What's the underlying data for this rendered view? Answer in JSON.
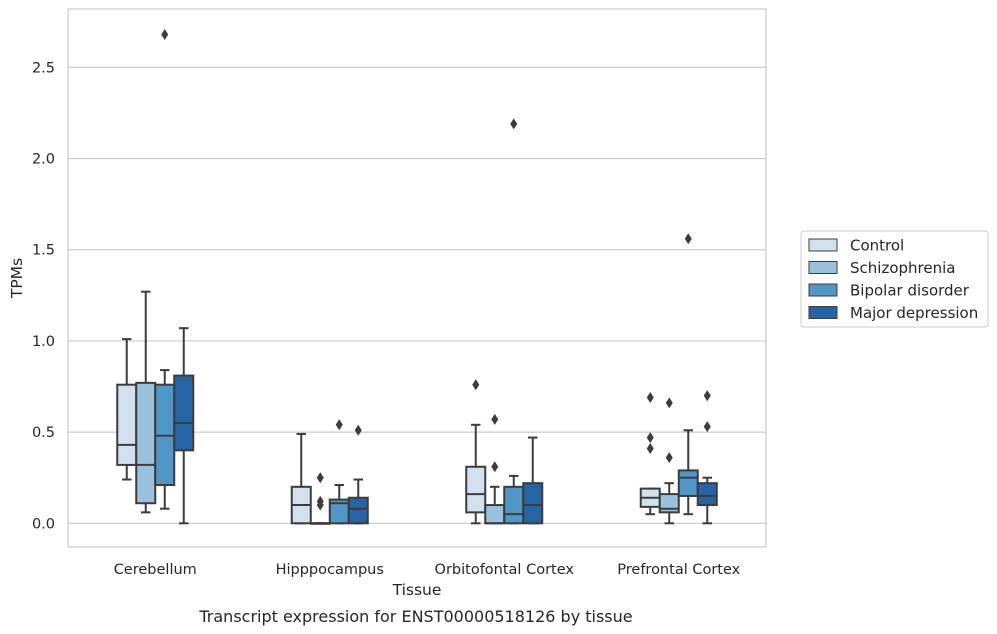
{
  "caption": "Transcript expression for ENST00000518126 by tissue",
  "chart_data": {
    "type": "boxplot",
    "xlabel": "Tissue",
    "ylabel": "TPMs",
    "categories": [
      "Cerebellum",
      "Hipppocampus",
      "Orbitofontal Cortex",
      "Prefrontal Cortex"
    ],
    "ylim": [
      -0.13,
      2.82
    ],
    "yticks": [
      0.0,
      0.5,
      1.0,
      1.5,
      2.0,
      2.5
    ],
    "ytick_labels": [
      "0.0",
      "0.5",
      "1.0",
      "1.5",
      "2.0",
      "2.5"
    ],
    "grid": "horizontal",
    "legend_placement": "right",
    "series": [
      {
        "name": "Control",
        "color": "#d1e1f0",
        "boxes": [
          {
            "whisker_low": 0.24,
            "q1": 0.32,
            "median": 0.43,
            "q3": 0.76,
            "whisker_high": 1.01,
            "outliers": []
          },
          {
            "whisker_low": 0.0,
            "q1": 0.0,
            "median": 0.1,
            "q3": 0.2,
            "whisker_high": 0.49,
            "outliers": []
          },
          {
            "whisker_low": 0.0,
            "q1": 0.06,
            "median": 0.16,
            "q3": 0.31,
            "whisker_high": 0.54,
            "outliers": [
              0.76
            ]
          },
          {
            "whisker_low": 0.05,
            "q1": 0.09,
            "median": 0.14,
            "q3": 0.19,
            "whisker_high": 0.19,
            "outliers": [
              0.41,
              0.47,
              0.69
            ]
          }
        ]
      },
      {
        "name": "Schizophrenia",
        "color": "#9bc2dc",
        "boxes": [
          {
            "whisker_low": 0.06,
            "q1": 0.11,
            "median": 0.32,
            "q3": 0.77,
            "whisker_high": 1.27,
            "outliers": []
          },
          {
            "whisker_low": 0.0,
            "q1": 0.0,
            "median": 0.0,
            "q3": 0.0,
            "whisker_high": 0.0,
            "outliers": [
              0.1,
              0.12,
              0.25
            ]
          },
          {
            "whisker_low": 0.0,
            "q1": 0.0,
            "median": 0.0,
            "q3": 0.1,
            "whisker_high": 0.2,
            "outliers": [
              0.31,
              0.57
            ]
          },
          {
            "whisker_low": 0.0,
            "q1": 0.06,
            "median": 0.08,
            "q3": 0.16,
            "whisker_high": 0.22,
            "outliers": [
              0.36,
              0.66
            ]
          }
        ]
      },
      {
        "name": "Bipolar disorder",
        "color": "#5096c6",
        "boxes": [
          {
            "whisker_low": 0.08,
            "q1": 0.21,
            "median": 0.48,
            "q3": 0.76,
            "whisker_high": 0.84,
            "outliers": [
              2.68
            ]
          },
          {
            "whisker_low": 0.0,
            "q1": 0.0,
            "median": 0.11,
            "q3": 0.13,
            "whisker_high": 0.21,
            "outliers": [
              0.54
            ]
          },
          {
            "whisker_low": 0.0,
            "q1": 0.0,
            "median": 0.05,
            "q3": 0.2,
            "whisker_high": 0.26,
            "outliers": [
              2.19
            ]
          },
          {
            "whisker_low": 0.05,
            "q1": 0.15,
            "median": 0.25,
            "q3": 0.29,
            "whisker_high": 0.51,
            "outliers": [
              1.56
            ]
          }
        ]
      },
      {
        "name": "Major depression",
        "color": "#2565a6",
        "boxes": [
          {
            "whisker_low": 0.0,
            "q1": 0.4,
            "median": 0.55,
            "q3": 0.81,
            "whisker_high": 1.07,
            "outliers": []
          },
          {
            "whisker_low": 0.0,
            "q1": 0.0,
            "median": 0.08,
            "q3": 0.14,
            "whisker_high": 0.24,
            "outliers": [
              0.51
            ]
          },
          {
            "whisker_low": 0.0,
            "q1": 0.0,
            "median": 0.1,
            "q3": 0.22,
            "whisker_high": 0.47,
            "outliers": []
          },
          {
            "whisker_low": 0.0,
            "q1": 0.1,
            "median": 0.15,
            "q3": 0.22,
            "whisker_high": 0.25,
            "outliers": [
              0.53,
              0.7
            ]
          }
        ]
      }
    ]
  }
}
